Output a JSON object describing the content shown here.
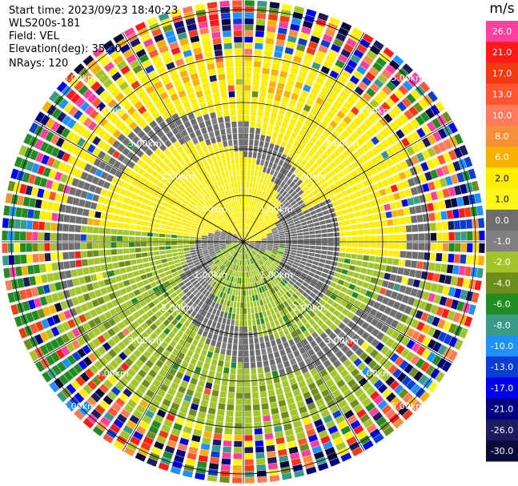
{
  "info": {
    "start_time": "Start time: 2023/09/23 18:40:23",
    "instrument": "WLS200s-181",
    "field": "Field: VEL",
    "elevation": "Elevation(deg): 35.30",
    "nrays": "NRays: 120"
  },
  "chart_data": {
    "type": "heatmap",
    "subtype": "ppi-polar",
    "nrays": 120,
    "range_rings_km": [
      "1.00km",
      "2.00km",
      "3.00km",
      "4.00km",
      "5.00km"
    ],
    "colorbar": {
      "unit": "m/s",
      "ticks": [
        "26.0",
        "21.0",
        "17.0",
        "13.0",
        "10.0",
        "8.0",
        "6.0",
        "2.0",
        "1.0",
        "0.0",
        "-1.0",
        "-2.0",
        "-4.0",
        "-6.0",
        "-8.0",
        "-10.0",
        "-13.0",
        "-17.0",
        "-21.0",
        "-26.0",
        "-30.0"
      ],
      "colors": [
        "#ff3fa0",
        "#ff1a1a",
        "#f03a10",
        "#ff5533",
        "#ff7a5a",
        "#f8903a",
        "#f9b000",
        "#ffee00",
        "#fff71a",
        "#6e6e6e",
        "#808080",
        "#a2c62a",
        "#6d8e1a",
        "#228b22",
        "#3a9a8a",
        "#1e90ff",
        "#0b3dd6",
        "#0000ee",
        "#000080",
        "#1b1b60",
        "#0a0a3a"
      ]
    }
  }
}
